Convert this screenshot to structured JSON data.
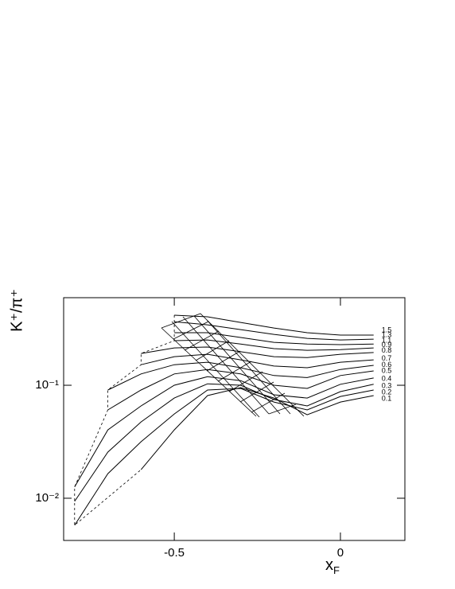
{
  "chart_data": {
    "type": "line",
    "x_label": "x",
    "x_label_subscript": "F",
    "y_label": "K⁺/π⁺",
    "x": [
      -0.8,
      -0.7,
      -0.6,
      -0.5,
      -0.4,
      -0.3,
      -0.2,
      -0.1,
      0,
      0.1
    ],
    "series": [
      {
        "name": "1.5",
        "color": "#000",
        "values": [
          null,
          null,
          null,
          0.417,
          0.404,
          0.36,
          0.321,
          0.292,
          0.278,
          0.278
        ]
      },
      {
        "name": "1.3",
        "color": "#000",
        "values": [
          null,
          null,
          null,
          0.365,
          0.343,
          0.311,
          0.282,
          0.26,
          0.252,
          0.256
        ]
      },
      {
        "name": "1.1",
        "color": "#000",
        "values": [
          null,
          null,
          null,
          0.292,
          0.292,
          0.265,
          0.24,
          0.232,
          0.229,
          0.232
        ]
      },
      {
        "name": "0.9",
        "color": "#000",
        "values": [
          null,
          null,
          null,
          0.248,
          0.252,
          0.232,
          0.211,
          0.204,
          0.207,
          0.214
        ]
      },
      {
        "name": "0.8",
        "color": "#000",
        "values": [
          null,
          null,
          0.191,
          0.214,
          0.218,
          0.198,
          0.179,
          0.176,
          0.188,
          0.195
        ]
      },
      {
        "name": "0.7",
        "color": "#000",
        "values": [
          null,
          null,
          0.152,
          0.179,
          0.188,
          0.168,
          0.148,
          0.143,
          0.16,
          0.168
        ]
      },
      {
        "name": "0.6",
        "color": "#000",
        "values": [
          null,
          0.0908,
          0.126,
          0.152,
          0.16,
          0.143,
          0.122,
          0.117,
          0.138,
          0.15
        ]
      },
      {
        "name": "0.5",
        "color": "#000",
        "values": [
          null,
          0.0605,
          0.0908,
          0.126,
          0.138,
          0.126,
          0.1,
          0.0937,
          0.122,
          0.134
        ]
      },
      {
        "name": "0.4",
        "color": "#000",
        "values": [
          0.0126,
          0.0403,
          0.0656,
          0.1,
          0.119,
          0.11,
          0.0823,
          0.0771,
          0.102,
          0.116
        ]
      },
      {
        "name": "0.3",
        "color": "#000",
        "values": [
          0.00938,
          0.0256,
          0.0474,
          0.0771,
          0.103,
          0.1,
          0.0747,
          0.0656,
          0.0879,
          0.102
        ]
      },
      {
        "name": "0.2",
        "color": "#000",
        "values": [
          0.00577,
          0.0165,
          0.0316,
          0.0557,
          0.0908,
          0.0937,
          0.0711,
          0.0605,
          0.0796,
          0.0908
        ]
      },
      {
        "name": "0.1",
        "color": "#000",
        "values": [
          null,
          null,
          0.0179,
          0.0403,
          0.081,
          0.0953,
          0.0771,
          0.0548,
          0.0711,
          0.081
        ]
      }
    ],
    "xlim": [
      -0.833,
      0.194
    ],
    "xticks": [
      -0.5,
      0
    ],
    "ylim": [
      0.00423,
      0.596
    ],
    "log_y": true,
    "yticks": [
      {
        "value": 0.1,
        "label": "10⁻¹"
      },
      {
        "value": 0.01,
        "label": "10⁻²"
      }
    ]
  }
}
